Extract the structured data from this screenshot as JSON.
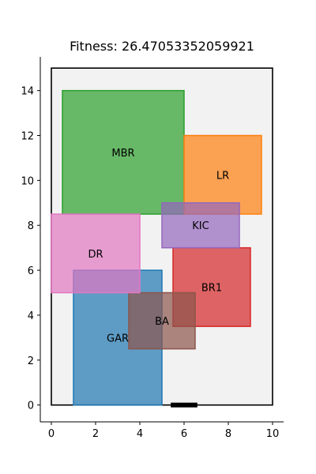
{
  "chart_data": {
    "type": "layout",
    "title": "Fitness: 26.47053352059921",
    "xlim": [
      -0.5,
      10.5
    ],
    "ylim": [
      -0.75,
      15.5
    ],
    "xticks": [
      0,
      2,
      4,
      6,
      8,
      10
    ],
    "yticks": [
      0,
      2,
      4,
      6,
      8,
      10,
      12,
      14
    ],
    "grid": false,
    "boundary": {
      "x0": 0,
      "y0": 0,
      "x1": 10,
      "y1": 15
    },
    "entrance": {
      "x0": 5.4,
      "x1": 6.6,
      "y": 0
    },
    "rooms": [
      {
        "name": "MBR",
        "x0": 0.5,
        "y0": 8.5,
        "x1": 6,
        "y1": 14,
        "color": "#2ca02c"
      },
      {
        "name": "LR",
        "x0": 6,
        "y0": 8.5,
        "x1": 9.5,
        "y1": 12,
        "color": "#ff7f0e"
      },
      {
        "name": "BR1",
        "x0": 5.5,
        "y0": 3.5,
        "x1": 9,
        "y1": 7,
        "color": "#d62728"
      },
      {
        "name": "GAR",
        "x0": 1,
        "y0": 0,
        "x1": 5,
        "y1": 6,
        "color": "#1f77b4"
      },
      {
        "name": "BA",
        "x0": 3.5,
        "y0": 2.5,
        "x1": 6.5,
        "y1": 5,
        "color": "#8c564b"
      },
      {
        "name": "DR",
        "x0": 0,
        "y0": 5,
        "x1": 4,
        "y1": 8.5,
        "color": "#e377c2"
      },
      {
        "name": "KIC",
        "x0": 5,
        "y0": 7,
        "x1": 8.5,
        "y1": 9,
        "color": "#9467bd"
      }
    ]
  }
}
